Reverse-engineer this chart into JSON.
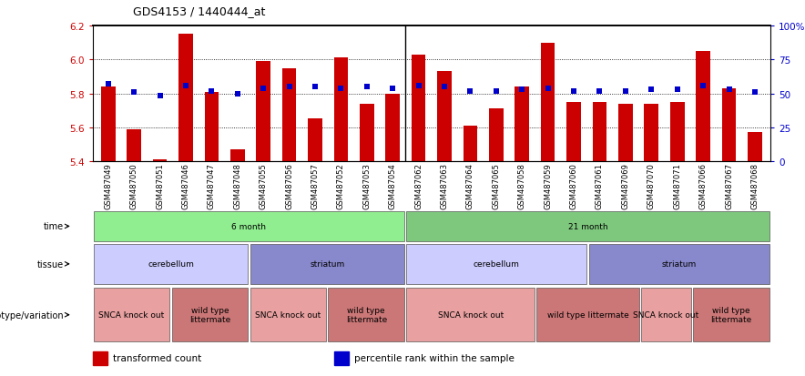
{
  "title": "GDS4153 / 1440444_at",
  "samples": [
    "GSM487049",
    "GSM487050",
    "GSM487051",
    "GSM487046",
    "GSM487047",
    "GSM487048",
    "GSM487055",
    "GSM487056",
    "GSM487057",
    "GSM487052",
    "GSM487053",
    "GSM487054",
    "GSM487062",
    "GSM487063",
    "GSM487064",
    "GSM487065",
    "GSM487058",
    "GSM487059",
    "GSM487060",
    "GSM487061",
    "GSM487069",
    "GSM487070",
    "GSM487071",
    "GSM487066",
    "GSM487067",
    "GSM487068"
  ],
  "red_values": [
    5.84,
    5.59,
    5.41,
    6.15,
    5.81,
    5.47,
    5.99,
    5.95,
    5.65,
    6.01,
    5.74,
    5.8,
    6.03,
    5.93,
    5.61,
    5.71,
    5.84,
    6.1,
    5.75,
    5.75,
    5.74,
    5.74,
    5.75,
    6.05,
    5.83,
    5.57
  ],
  "blue_values": [
    57,
    51,
    48,
    56,
    52,
    50,
    54,
    55,
    55,
    54,
    55,
    54,
    56,
    55,
    52,
    52,
    53,
    54,
    52,
    52,
    52,
    53,
    53,
    56,
    53,
    51
  ],
  "ylim_left": [
    5.4,
    6.2
  ],
  "ylim_right": [
    0,
    100
  ],
  "yticks_left": [
    5.4,
    5.6,
    5.8,
    6.0,
    6.2
  ],
  "yticks_right": [
    0,
    25,
    50,
    75,
    100
  ],
  "ytick_labels_right": [
    "0",
    "25",
    "50",
    "75",
    "100%"
  ],
  "bar_color": "#cc0000",
  "dot_color": "#0000cc",
  "bg_color": "#ffffff",
  "time_groups": [
    {
      "label": "6 month",
      "start": 0,
      "end": 12,
      "color": "#90EE90"
    },
    {
      "label": "21 month",
      "start": 12,
      "end": 26,
      "color": "#7EC87E"
    }
  ],
  "tissue_groups": [
    {
      "label": "cerebellum",
      "start": 0,
      "end": 6,
      "color": "#ccccff"
    },
    {
      "label": "striatum",
      "start": 6,
      "end": 12,
      "color": "#8888cc"
    },
    {
      "label": "cerebellum",
      "start": 12,
      "end": 19,
      "color": "#ccccff"
    },
    {
      "label": "striatum",
      "start": 19,
      "end": 26,
      "color": "#8888cc"
    }
  ],
  "genotype_groups": [
    {
      "label": "SNCA knock out",
      "start": 0,
      "end": 3,
      "color": "#e8a0a0"
    },
    {
      "label": "wild type\nlittermate",
      "start": 3,
      "end": 6,
      "color": "#cc7777"
    },
    {
      "label": "SNCA knock out",
      "start": 6,
      "end": 9,
      "color": "#e8a0a0"
    },
    {
      "label": "wild type\nlittermate",
      "start": 9,
      "end": 12,
      "color": "#cc7777"
    },
    {
      "label": "SNCA knock out",
      "start": 12,
      "end": 17,
      "color": "#e8a0a0"
    },
    {
      "label": "wild type littermate",
      "start": 17,
      "end": 21,
      "color": "#cc7777"
    },
    {
      "label": "SNCA knock out",
      "start": 21,
      "end": 23,
      "color": "#e8a0a0"
    },
    {
      "label": "wild type\nlittermate",
      "start": 23,
      "end": 26,
      "color": "#cc7777"
    }
  ],
  "legend_items": [
    {
      "label": "transformed count",
      "color": "#cc0000"
    },
    {
      "label": "percentile rank within the sample",
      "color": "#0000cc"
    }
  ],
  "row_labels": [
    "time",
    "tissue",
    "genotype/variation"
  ]
}
